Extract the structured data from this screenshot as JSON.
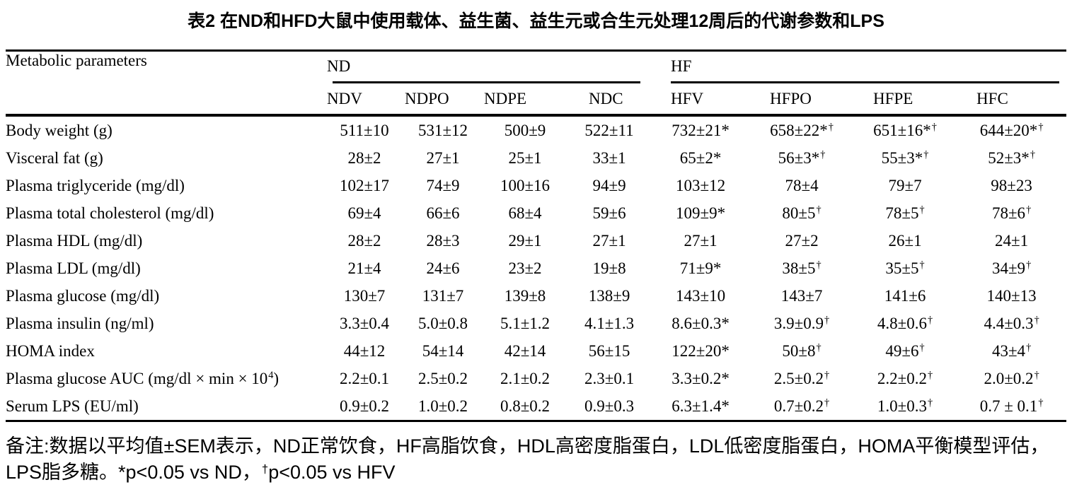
{
  "title": "表2 在ND和HFD大鼠中使用载体、益生菌、益生元或合生元处理12周后的代谢参数和LPS",
  "table": {
    "corner_header": "Metabolic parameters",
    "groups": [
      {
        "label": "ND",
        "columns": [
          "NDV",
          "NDPO",
          "NDPE",
          "NDC"
        ]
      },
      {
        "label": "HF",
        "columns": [
          "HFV",
          "HFPO",
          "HFPE",
          "HFC"
        ]
      }
    ],
    "rows": [
      {
        "parameter": "Body weight (g)",
        "values": [
          "511±10",
          "531±12",
          "500±9",
          "522±11",
          "732±21*",
          "658±22*†",
          "651±16*†",
          "644±20*†"
        ]
      },
      {
        "parameter": "Visceral fat (g)",
        "values": [
          "28±2",
          "27±1",
          "25±1",
          "33±1",
          "65±2*",
          "56±3*†",
          "55±3*†",
          "52±3*†"
        ]
      },
      {
        "parameter": "Plasma triglyceride (mg/dl)",
        "values": [
          "102±17",
          "74±9",
          "100±16",
          "94±9",
          "103±12",
          "78±4",
          "79±7",
          "98±23"
        ]
      },
      {
        "parameter": "Plasma total cholesterol (mg/dl)",
        "values": [
          "69±4",
          "66±6",
          "68±4",
          "59±6",
          "109±9*",
          "80±5†",
          "78±5†",
          "78±6†"
        ]
      },
      {
        "parameter": "Plasma HDL (mg/dl)",
        "values": [
          "28±2",
          "28±3",
          "29±1",
          "27±1",
          "27±1",
          "27±2",
          "26±1",
          "24±1"
        ]
      },
      {
        "parameter": "Plasma LDL (mg/dl)",
        "values": [
          "21±4",
          "24±6",
          "23±2",
          "19±8",
          "71±9*",
          "38±5†",
          "35±5†",
          "34±9†"
        ]
      },
      {
        "parameter": "Plasma glucose (mg/dl)",
        "values": [
          "130±7",
          "131±7",
          "139±8",
          "138±9",
          "143±10",
          "143±7",
          "141±6",
          "140±13"
        ]
      },
      {
        "parameter": "Plasma insulin (ng/ml)",
        "values": [
          "3.3±0.4",
          "5.0±0.8",
          "5.1±1.2",
          "4.1±1.3",
          "8.6±0.3*",
          "3.9±0.9†",
          "4.8±0.6†",
          "4.4±0.3†"
        ]
      },
      {
        "parameter": "HOMA index",
        "values": [
          "44±12",
          "54±14",
          "42±14",
          "56±15",
          "122±20*",
          "50±8†",
          "49±6†",
          "43±4†"
        ]
      },
      {
        "parameter": "Plasma glucose AUC (mg/dl × min × 10^4)",
        "values": [
          "2.2±0.1",
          "2.5±0.2",
          "2.1±0.2",
          "2.3±0.1",
          "3.3±0.2*",
          "2.5±0.2†",
          "2.2±0.2†",
          "2.0±0.2†"
        ]
      },
      {
        "parameter": "Serum LPS (EU/ml)",
        "values": [
          "0.9±0.2",
          "1.0±0.2",
          "0.8±0.2",
          "0.9±0.3",
          "6.3±1.4*",
          "0.7±0.2†",
          "1.0±0.3†",
          "0.7 ± 0.1†"
        ]
      }
    ]
  },
  "footnote": "备注:数据以平均值±SEM表示，ND正常饮食，HF高脂饮食，HDL高密度脂蛋白，LDL低密度脂蛋白，HOMA平衡模型评估，LPS脂多糖。*p<0.05 vs ND，†p<0.05 vs HFV"
}
